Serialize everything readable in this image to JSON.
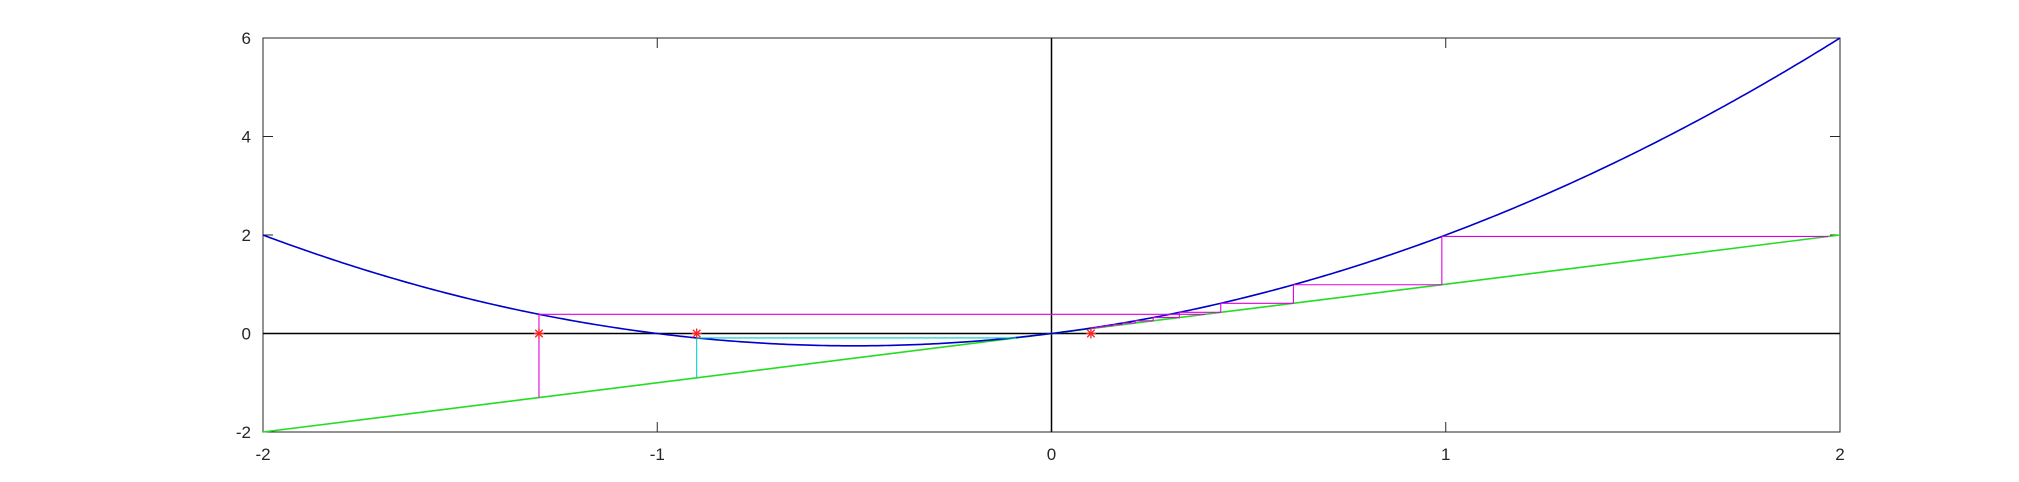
{
  "chart_data": {
    "type": "line",
    "title": "",
    "xlabel": "",
    "ylabel": "",
    "xlim": [
      -2,
      2
    ],
    "ylim": [
      -2,
      6
    ],
    "grid": false,
    "legend": "none",
    "x_ticks": [
      "-2",
      "-1",
      "0",
      "1",
      "2"
    ],
    "y_ticks": [
      "-2",
      "0",
      "2",
      "4",
      "6"
    ],
    "x_tick_values": [
      -2,
      -1,
      0,
      1,
      2
    ],
    "y_tick_values": [
      -2,
      0,
      2,
      4,
      6
    ],
    "curve": {
      "function": "x^2 + x",
      "color": "#0000cc"
    },
    "identity_line": {
      "function": "x",
      "color": "#22dd22"
    },
    "axes_lines": {
      "color": "#000000"
    },
    "cobweb_right": {
      "color": "#dd00dd",
      "start_marker": {
        "x": 0.1,
        "y": 0
      },
      "iterates": [
        0.1,
        0.11,
        0.1221,
        0.137,
        0.1558,
        0.1801,
        0.2126,
        0.2578,
        0.3242,
        0.4293,
        0.6136,
        0.9901,
        1.9704
      ]
    },
    "cobweb_left_magenta": {
      "color": "#dd00dd",
      "start_marker": {
        "x": -1.3,
        "y": 0
      },
      "x0": -1.3,
      "y1": 0.39
    },
    "cobweb_left_cyan": {
      "color": "#00cccc",
      "start_marker": {
        "x": -0.9,
        "y": 0
      },
      "x0": -0.9,
      "y1": -0.09
    },
    "marker_color": "#ff2222"
  }
}
